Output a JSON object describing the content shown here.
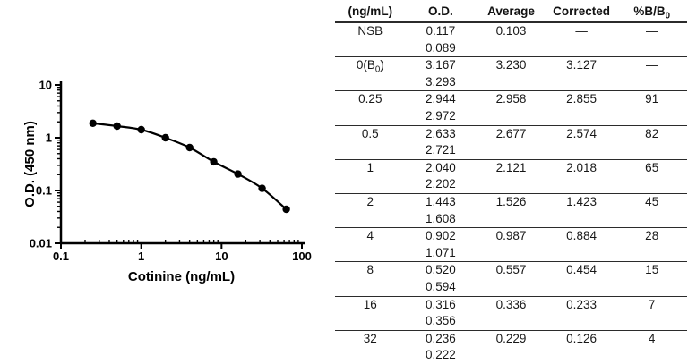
{
  "chart_data": {
    "type": "scatter",
    "title": "",
    "xlabel": "Cotinine (ng/mL)",
    "ylabel": "O.D. (450 nm)",
    "xscale": "log",
    "yscale": "log",
    "xlim": [
      0.1,
      100
    ],
    "ylim": [
      0.01,
      10
    ],
    "x_ticks": [
      "0.1",
      "1",
      "10",
      "100"
    ],
    "y_ticks": [
      "10",
      "1",
      "0.1",
      "0.01"
    ],
    "x": [
      0.25,
      0.5,
      1,
      2,
      4,
      8,
      16,
      32,
      64
    ],
    "y": [
      1.88,
      1.66,
      1.42,
      1.0,
      0.65,
      0.35,
      0.205,
      0.11,
      0.044
    ],
    "marker_color": "#000000",
    "line_color": "#000000",
    "grid": false,
    "legend": false
  },
  "table": {
    "headers": [
      "(ng/mL)",
      "O.D.",
      "Average",
      "Corrected",
      "%B/B₀"
    ],
    "rows": [
      {
        "label": "NSB",
        "od1": "0.117",
        "od2": "0.089",
        "average": "0.103",
        "corrected": "—",
        "pct": "—"
      },
      {
        "label": "0(B₀)",
        "od1": "3.167",
        "od2": "3.293",
        "average": "3.230",
        "corrected": "3.127",
        "pct": "—"
      },
      {
        "label": "0.25",
        "od1": "2.944",
        "od2": "2.972",
        "average": "2.958",
        "corrected": "2.855",
        "pct": "91"
      },
      {
        "label": "0.5",
        "od1": "2.633",
        "od2": "2.721",
        "average": "2.677",
        "corrected": "2.574",
        "pct": "82"
      },
      {
        "label": "1",
        "od1": "2.040",
        "od2": "2.202",
        "average": "2.121",
        "corrected": "2.018",
        "pct": "65"
      },
      {
        "label": "2",
        "od1": "1.443",
        "od2": "1.608",
        "average": "1.526",
        "corrected": "1.423",
        "pct": "45"
      },
      {
        "label": "4",
        "od1": "0.902",
        "od2": "1.071",
        "average": "0.987",
        "corrected": "0.884",
        "pct": "28"
      },
      {
        "label": "8",
        "od1": "0.520",
        "od2": "0.594",
        "average": "0.557",
        "corrected": "0.454",
        "pct": "15"
      },
      {
        "label": "16",
        "od1": "0.316",
        "od2": "0.356",
        "average": "0.336",
        "corrected": "0.233",
        "pct": "7"
      },
      {
        "label": "32",
        "od1": "0.236",
        "od2": "0.222",
        "average": "0.229",
        "corrected": "0.126",
        "pct": "4"
      }
    ]
  },
  "colors": {
    "ink": "#000000",
    "rule": "#2b2b2b",
    "background": "#ffffff"
  }
}
